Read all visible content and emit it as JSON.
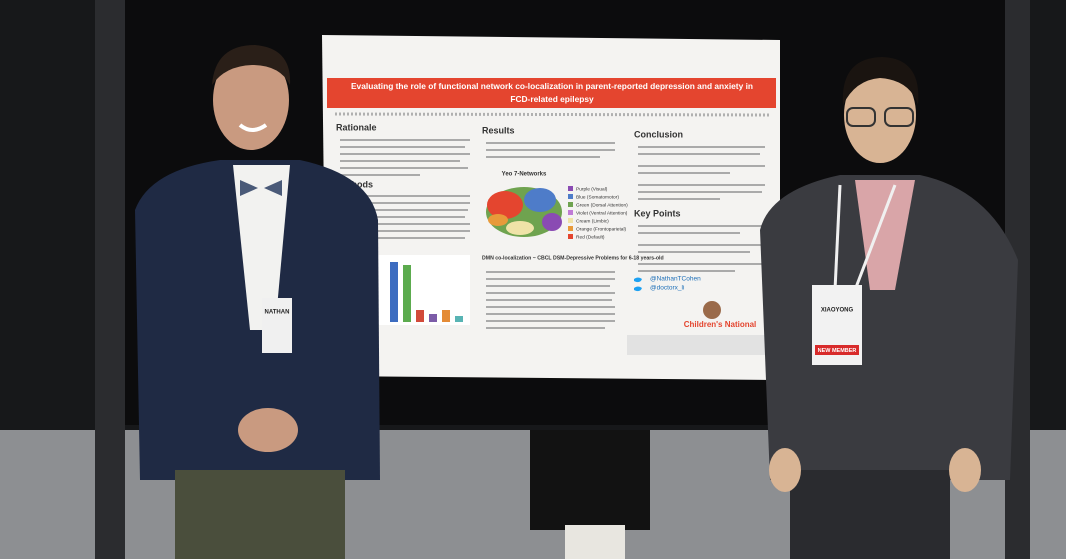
{
  "poster": {
    "title": [
      "Evaluating the role of functional network co-localization in parent-reported depression and anxiety in",
      "FCD-related epilepsy"
    ],
    "sections": {
      "rationale": "Rationale",
      "methods": "Methods",
      "results": "Results",
      "conclusion": "Conclusion",
      "key_points": "Key Points"
    },
    "figure_title": "Yeo 7-Networks",
    "legend": [
      "Purple (Visual)",
      "Blue (Somatomotor)",
      "Green (Dorsal Attention)",
      "Violet (Ventral Attention)",
      "Cream (Limbic)",
      "Orange (Frontoparietal)",
      "Red (Default)"
    ],
    "results_heading": "DMN co-localization ~ CBCL DSM-Depressive Problems for 6-18 years-old",
    "handles": [
      "@NathanTCohen",
      "@doctorx_li"
    ],
    "institution": "Children's National"
  },
  "badges": {
    "left_name": "NATHAN",
    "right_name": "XIAOYONG",
    "ribbon": "NEW MEMBER"
  }
}
